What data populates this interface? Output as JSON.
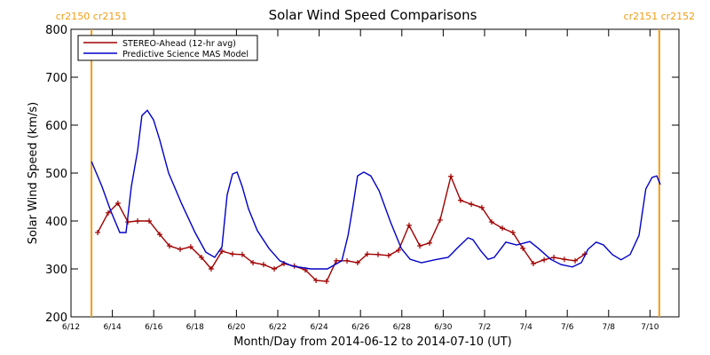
{
  "chart_data": {
    "type": "line",
    "title": "Solar Wind Speed Comparisons",
    "x_label": "Month/Day from 2014-06-12 to 2014-07-10 (UT)",
    "y_label": "Solar Wind Speed (km/s)",
    "xlim": [
      0,
      29.4
    ],
    "ylim": [
      200,
      800
    ],
    "xticks": [
      {
        "value": 0,
        "label": "6/12"
      },
      {
        "value": 2,
        "label": "6/14"
      },
      {
        "value": 4,
        "label": "6/16"
      },
      {
        "value": 6,
        "label": "6/18"
      },
      {
        "value": 8,
        "label": "6/20"
      },
      {
        "value": 10,
        "label": "6/22"
      },
      {
        "value": 12,
        "label": "6/24"
      },
      {
        "value": 14,
        "label": "6/26"
      },
      {
        "value": 16,
        "label": "6/28"
      },
      {
        "value": 18,
        "label": "6/30"
      },
      {
        "value": 20,
        "label": "7/2"
      },
      {
        "value": 22,
        "label": "7/4"
      },
      {
        "value": 24,
        "label": "7/6"
      },
      {
        "value": 26,
        "label": "7/8"
      },
      {
        "value": 28,
        "label": "7/10"
      }
    ],
    "yticks": [
      200,
      300,
      400,
      500,
      600,
      700,
      800
    ],
    "legend": "upper left",
    "carrington_lines": [
      {
        "x": 0.99,
        "label": "cr2150 cr2151",
        "color": "#f39c12"
      },
      {
        "x": 28.45,
        "label": "cr2151 cr2152",
        "color": "#f39c12"
      }
    ],
    "series": [
      {
        "name": "STEREO-Ahead (12-hr avg)",
        "color": "#a00000",
        "marker": "+",
        "x": [
          1.29,
          1.8,
          2.27,
          2.75,
          3.22,
          3.78,
          4.29,
          4.76,
          5.28,
          5.79,
          6.31,
          6.78,
          7.3,
          7.81,
          8.28,
          8.8,
          9.31,
          9.83,
          10.3,
          10.8,
          11.33,
          11.85,
          12.36,
          12.83,
          13.35,
          13.86,
          14.33,
          14.85,
          15.36,
          15.84,
          16.35,
          16.87,
          17.34,
          17.85,
          18.37,
          18.84,
          19.36,
          19.87,
          20.34,
          20.86,
          21.37,
          21.85,
          22.36,
          22.88,
          23.35,
          23.86,
          24.38,
          24.85
        ],
        "values": [
          376,
          417,
          437,
          398,
          400,
          400,
          372,
          348,
          341,
          346,
          324,
          300,
          337,
          331,
          330,
          313,
          309,
          300,
          311,
          306,
          298,
          276,
          274,
          317,
          317,
          313,
          331,
          330,
          328,
          339,
          391,
          348,
          354,
          402,
          493,
          443,
          435,
          428,
          398,
          385,
          376,
          343,
          311,
          319,
          324,
          320,
          317,
          331
        ]
      },
      {
        "name": "Predictive Science MAS Model",
        "color": "#0000c8",
        "x": [
          0.99,
          1.5,
          1.93,
          2.36,
          2.66,
          2.92,
          3.22,
          3.43,
          3.69,
          3.99,
          4.29,
          4.72,
          5.36,
          6.0,
          6.52,
          6.95,
          7.3,
          7.55,
          7.81,
          8.03,
          8.28,
          8.58,
          9.01,
          9.57,
          10.1,
          10.7,
          11.6,
          12.4,
          13.1,
          13.4,
          13.65,
          13.86,
          14.16,
          14.5,
          14.9,
          15.45,
          15.97,
          16.4,
          16.95,
          17.6,
          18.24,
          18.67,
          19.2,
          19.44,
          19.83,
          20.17,
          20.47,
          21.03,
          21.55,
          22.19,
          22.6,
          23.2,
          23.7,
          24.25,
          24.68,
          25.0,
          25.4,
          25.75,
          26.18,
          26.6,
          27.04,
          27.47,
          27.8,
          28.1,
          28.33,
          28.5
        ],
        "values": [
          524,
          472,
          420,
          376,
          376,
          472,
          546,
          620,
          631,
          611,
          569,
          500,
          435,
          376,
          335,
          324,
          346,
          454,
          498,
          502,
          472,
          426,
          380,
          343,
          317,
          306,
          300,
          300,
          317,
          370,
          435,
          494,
          502,
          494,
          463,
          398,
          343,
          320,
          313,
          319,
          324,
          343,
          365,
          361,
          337,
          320,
          324,
          356,
          350,
          357,
          343,
          320,
          309,
          304,
          313,
          341,
          356,
          350,
          330,
          319,
          330,
          370,
          467,
          491,
          494,
          476
        ]
      }
    ]
  }
}
